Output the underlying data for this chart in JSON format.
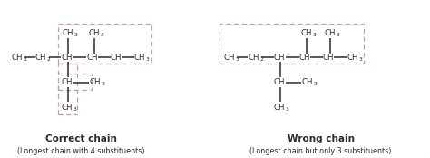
{
  "bg_color": "#ffffff",
  "text_color": "#2b2b2b",
  "bond_color": "#2b2b2b",
  "dash_color": "#c0a0a0",
  "title_left": "Correct chain",
  "title_right": "Wrong chain",
  "subtitle_left": "(Longest chain with 4 substituents)",
  "subtitle_right": "(Longest chain but only 3 substituents)",
  "title_fontsize": 7.5,
  "subtitle_fontsize": 5.8,
  "label_fontsize": 6.2
}
